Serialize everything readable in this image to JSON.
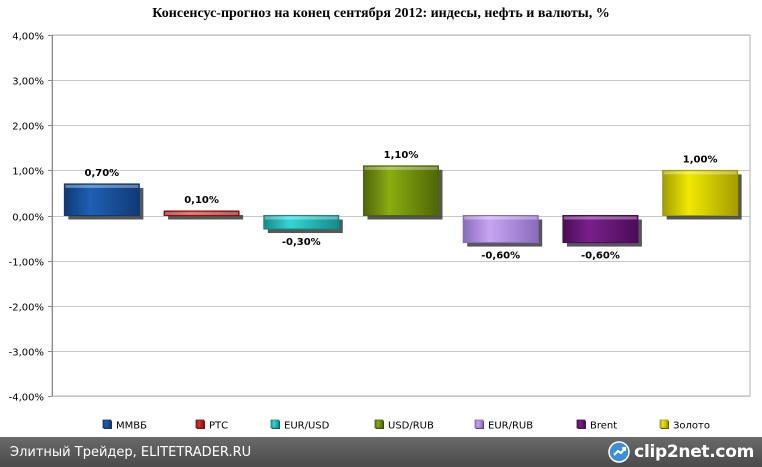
{
  "chart_data": {
    "type": "bar",
    "title": "Консенсус-прогноз на конец сентября 2012: индесы, нефть и валюты, %",
    "xlabel": "",
    "ylabel": "",
    "ylim": [
      -4,
      4
    ],
    "yticks": [
      "4,00%",
      "3,00%",
      "2,00%",
      "1,00%",
      "0,00%",
      "-1,00%",
      "-2,00%",
      "-3,00%",
      "-4,00%"
    ],
    "grid": true,
    "legend": "bottom",
    "categories": [
      "ММВБ",
      "РТС",
      "EUR/USD",
      "USD/RUB",
      "EUR/RUB",
      "Brent",
      "Золото"
    ],
    "values": [
      0.7,
      0.1,
      -0.3,
      1.1,
      -0.6,
      -0.6,
      1.0
    ],
    "data_labels": [
      "0,70%",
      "0,10%",
      "-0,30%",
      "1,10%",
      "-0,60%",
      "-0,60%",
      "1,00%"
    ],
    "colors": [
      "#1f5fb4",
      "#e03030",
      "#33d6d6",
      "#8aad10",
      "#c7a6f0",
      "#7a1f8c",
      "#f0e800"
    ],
    "dark_colors": [
      "#0f3a75",
      "#8a1010",
      "#148a8a",
      "#4f6606",
      "#8a6abf",
      "#4a0c58",
      "#a39d00"
    ]
  },
  "footer": {
    "text": "Элитный Трейдер, ELITETRADER.RU",
    "watermark": "clip2net.com"
  }
}
